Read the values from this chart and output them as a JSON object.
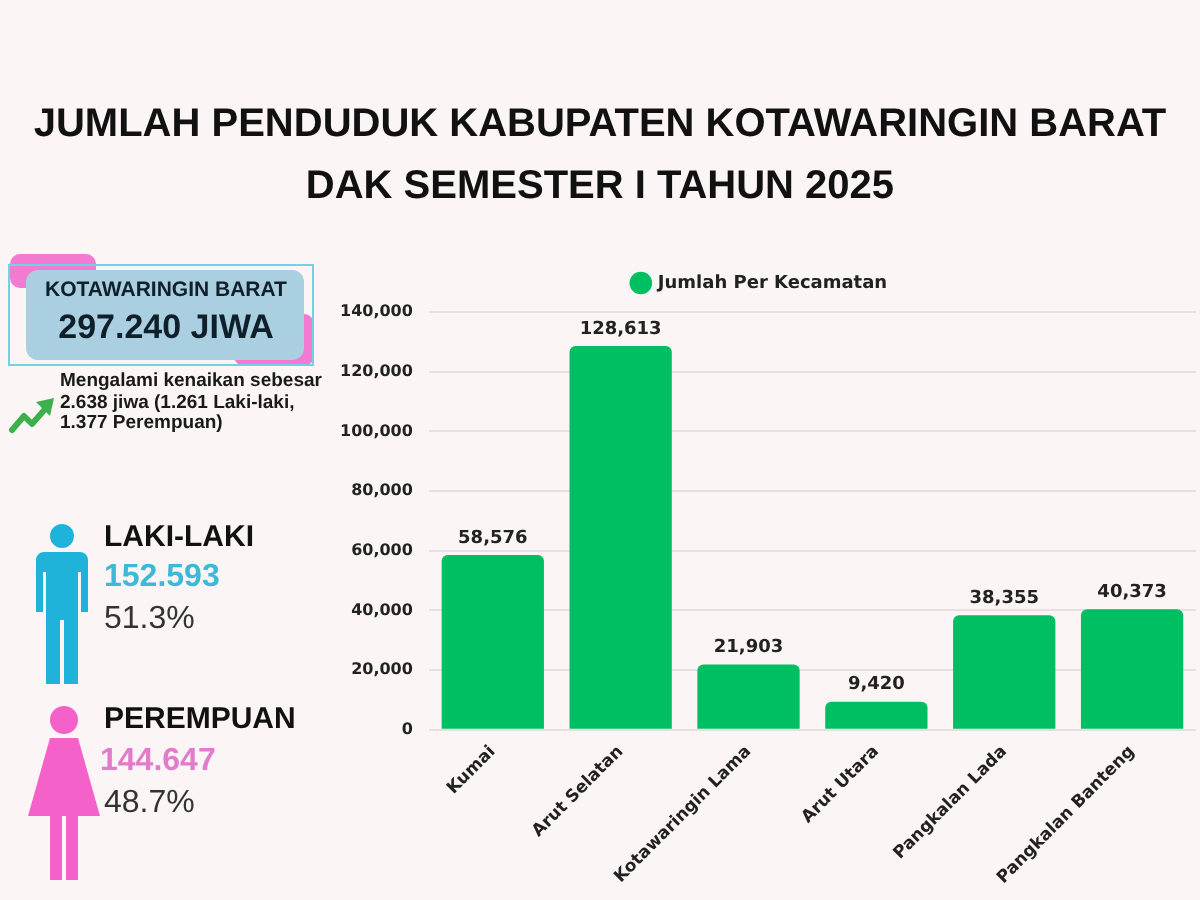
{
  "chart_data": [
    {
      "type": "other",
      "annotations": [
        "KOTAWARINGIN BARAT",
        "297.240 JIWA",
        "Mengalami kenaikan sebesar 2.638 jiwa (1.261 Laki-laki, 1.377 Perempuan)",
        "LAKI-LAKI",
        "152.593",
        "51.3%",
        "PEREMPUAN",
        "144.647",
        "48.7%"
      ]
    },
    {
      "type": "bar",
      "title": "JUMLAH PENDUDUK KABUPATEN KOTAWARINGIN BARAT DAK SEMESTER I TAHUN 2025",
      "categories": [
        "Kumai",
        "Arut Selatan",
        "Kotawaringin Lama",
        "Arut Utara",
        "Pangkalan Lada",
        "Pangkalan Banteng"
      ],
      "series": [
        {
          "name": "Jumlah Per Kecamatan",
          "color": "#00bf63",
          "values": [
            58576,
            128613,
            21903,
            9420,
            38355,
            40373
          ],
          "value_labels": [
            "58,576",
            "128,613",
            "21,903",
            "9,420",
            "38,355",
            "40,373"
          ]
        }
      ],
      "ylim": [
        0,
        140000
      ],
      "yticks": [
        0,
        {
          "value": 20000,
          "label": "20,000"
        },
        {
          "value": 40000,
          "label": "40,000"
        },
        {
          "value": 60000,
          "label": "60,000"
        },
        {
          "value": 80000,
          "label": "80,000"
        },
        {
          "value": 100000,
          "label": "100,000"
        },
        {
          "value": 120000,
          "label": "120,000"
        },
        {
          "value": 140000,
          "label": "140,000"
        }
      ],
      "grid": "y",
      "legend": "top"
    }
  ]
}
